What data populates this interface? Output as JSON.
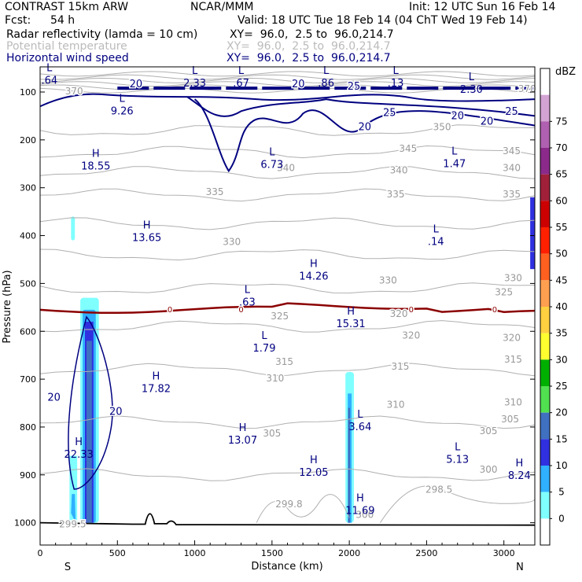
{
  "header": {
    "model": "CONTRAST 15km ARW",
    "org": "NCAR/MMM",
    "init": "Init: 12 UTC Sun 16 Feb 14",
    "fcst_label": "Fcst:",
    "fcst_value": "54 h",
    "valid": "Valid: 18 UTC Tue 18 Feb 14 (04 ChT Wed 19 Feb 14)",
    "fields": [
      {
        "name": "Radar reflectivity (lamda = 10 cm)",
        "xy": "XY=  96.0,  2.5 to  96.0,214.7",
        "color": "#000000"
      },
      {
        "name": "Potential temperature",
        "xy": "XY=  96.0,  2.5 to  96.0,214.7",
        "color": "#bbbbbb"
      },
      {
        "name": "Horizontal wind speed",
        "xy": "XY=  96.0,  2.5 to  96.0,214.7",
        "color": "#000080"
      }
    ]
  },
  "chart_data": {
    "type": "cross-section",
    "xlabel": "Distance (km)",
    "ylabel": "Pressure (hPa)",
    "xlim": [
      0,
      3200
    ],
    "ylim": [
      1050,
      40
    ],
    "x_ticks": [
      "0",
      "500",
      "1000",
      "1500",
      "2000",
      "2500",
      "3000"
    ],
    "x_tick_values": [
      0,
      500,
      1000,
      1500,
      2000,
      2500,
      3000
    ],
    "y_ticks": [
      "100",
      "200",
      "300",
      "400",
      "500",
      "600",
      "700",
      "800",
      "900",
      "1000"
    ],
    "y_tick_values": [
      100,
      200,
      300,
      400,
      500,
      600,
      700,
      800,
      900,
      1000
    ],
    "endpoints": {
      "left": "S",
      "right": "N"
    },
    "colorbar": {
      "unit": "dBZ",
      "levels": [
        {
          "label": "75",
          "color": "#d3a3d3"
        },
        {
          "label": "70",
          "color": "#b060b0"
        },
        {
          "label": "65",
          "color": "#8b2a8b"
        },
        {
          "label": "60",
          "color": "#a0203a"
        },
        {
          "label": "55",
          "color": "#cc0000"
        },
        {
          "label": "50",
          "color": "#ff2000"
        },
        {
          "label": "45",
          "color": "#ff6020"
        },
        {
          "label": "40",
          "color": "#ffa050"
        },
        {
          "label": "35",
          "color": "#ffd040"
        },
        {
          "label": "30",
          "color": "#ffff30"
        },
        {
          "label": "25",
          "color": "#00b000"
        },
        {
          "label": "20",
          "color": "#50e050"
        },
        {
          "label": "15",
          "color": "#4070c0"
        },
        {
          "label": "10",
          "color": "#3030e0"
        },
        {
          "label": "5",
          "color": "#30b0ff"
        },
        {
          "label": "0",
          "color": "#80ffff"
        }
      ]
    },
    "theta_contours": [
      {
        "label": "350",
        "p": 180
      },
      {
        "label": "345",
        "p": 225
      },
      {
        "label": "340",
        "p": 268
      },
      {
        "label": "335",
        "p": 315
      },
      {
        "label": "330",
        "p": 375
      },
      {
        "label": "325",
        "p": 440
      },
      {
        "label": "320",
        "p": 510
      },
      {
        "label": "315",
        "p": 590
      },
      {
        "label": "310",
        "p": 680
      },
      {
        "label": "305",
        "p": 790
      },
      {
        "label": "300",
        "p": 900
      }
    ],
    "theta_labels": [
      {
        "text": "350",
        "x": 2600,
        "p": 180
      },
      {
        "text": "345",
        "x": 2380,
        "p": 225
      },
      {
        "text": "345",
        "x": 3050,
        "p": 230
      },
      {
        "text": "340",
        "x": 1590,
        "p": 265
      },
      {
        "text": "340",
        "x": 2320,
        "p": 270
      },
      {
        "text": "340",
        "x": 3050,
        "p": 265
      },
      {
        "text": "335",
        "x": 1130,
        "p": 315
      },
      {
        "text": "335",
        "x": 2300,
        "p": 320
      },
      {
        "text": "335",
        "x": 3050,
        "p": 320
      },
      {
        "text": "330",
        "x": 1240,
        "p": 420
      },
      {
        "text": "330",
        "x": 2250,
        "p": 500
      },
      {
        "text": "330",
        "x": 3060,
        "p": 495
      },
      {
        "text": "325",
        "x": 1550,
        "p": 575
      },
      {
        "text": "325",
        "x": 3000,
        "p": 525
      },
      {
        "text": "320",
        "x": 2320,
        "p": 570
      },
      {
        "text": "320",
        "x": 3050,
        "p": 620
      },
      {
        "text": "320",
        "x": 2400,
        "p": 615
      },
      {
        "text": "315",
        "x": 1580,
        "p": 670
      },
      {
        "text": "315",
        "x": 2330,
        "p": 680
      },
      {
        "text": "315",
        "x": 3060,
        "p": 665
      },
      {
        "text": "310",
        "x": 1520,
        "p": 705
      },
      {
        "text": "310",
        "x": 2300,
        "p": 760
      },
      {
        "text": "310",
        "x": 3060,
        "p": 755
      },
      {
        "text": "305",
        "x": 1500,
        "p": 820
      },
      {
        "text": "305",
        "x": 2900,
        "p": 815
      },
      {
        "text": "305",
        "x": 3040,
        "p": 790
      },
      {
        "text": "300",
        "x": 2900,
        "p": 895
      },
      {
        "text": "299.8",
        "x": 1610,
        "p": 968
      },
      {
        "text": "298.5",
        "x": 2580,
        "p": 937
      },
      {
        "text": "299.5",
        "x": 210,
        "p": 1010
      },
      {
        "text": "300",
        "x": 2100,
        "p": 990
      },
      {
        "text": "370",
        "x": 3150,
        "p": 100
      },
      {
        "text": "370",
        "x": 220,
        "p": 105
      }
    ],
    "wind_labels": [
      {
        "text": "20",
        "x": 620,
        "p": 90
      },
      {
        "text": "20",
        "x": 1670,
        "p": 90
      },
      {
        "text": "25",
        "x": 2030,
        "p": 95
      },
      {
        "text": "25",
        "x": 2260,
        "p": 150
      },
      {
        "text": "20",
        "x": 2700,
        "p": 157
      },
      {
        "text": "20",
        "x": 2890,
        "p": 168
      },
      {
        "text": "25",
        "x": 3050,
        "p": 148
      },
      {
        "text": "20",
        "x": 2100,
        "p": 180
      },
      {
        "text": "20",
        "x": 90,
        "p": 745
      },
      {
        "text": "20",
        "x": 490,
        "p": 775
      }
    ],
    "zero_isotherm_label": "0",
    "extrema": [
      {
        "type": "L",
        "value": ".64",
        "x": 60,
        "p": 76
      },
      {
        "type": "L",
        "value": "2.33",
        "x": 1000,
        "p": 82
      },
      {
        "type": "L",
        "value": ".67",
        "x": 1300,
        "p": 82
      },
      {
        "type": "L",
        "value": ".86",
        "x": 1850,
        "p": 82
      },
      {
        "type": "L",
        "value": ".13",
        "x": 2300,
        "p": 82
      },
      {
        "type": "L",
        "value": "2.30",
        "x": 2790,
        "p": 95
      },
      {
        "type": "L",
        "value": "9.26",
        "x": 530,
        "p": 140
      },
      {
        "type": "H",
        "value": "18.55",
        "x": 360,
        "p": 255
      },
      {
        "type": "L",
        "value": "6.73",
        "x": 1500,
        "p": 252
      },
      {
        "type": "L",
        "value": "1.47",
        "x": 2680,
        "p": 250
      },
      {
        "type": "H",
        "value": "13.65",
        "x": 690,
        "p": 405
      },
      {
        "type": "L",
        "value": ".14",
        "x": 2560,
        "p": 413
      },
      {
        "type": "H",
        "value": "14.26",
        "x": 1770,
        "p": 485
      },
      {
        "type": "L",
        "value": ".63",
        "x": 1340,
        "p": 540
      },
      {
        "type": "H",
        "value": "15.31",
        "x": 2010,
        "p": 585
      },
      {
        "type": "L",
        "value": "1.79",
        "x": 1450,
        "p": 636
      },
      {
        "type": "H",
        "value": "17.82",
        "x": 750,
        "p": 720
      },
      {
        "type": "H",
        "value": "22.33",
        "x": 250,
        "p": 858
      },
      {
        "type": "H",
        "value": "13.07",
        "x": 1310,
        "p": 828
      },
      {
        "type": "L",
        "value": "3.64",
        "x": 2070,
        "p": 800
      },
      {
        "type": "H",
        "value": "12.05",
        "x": 1770,
        "p": 895
      },
      {
        "type": "L",
        "value": "5.13",
        "x": 2700,
        "p": 868
      },
      {
        "type": "H",
        "value": "8.24",
        "x": 3100,
        "p": 902
      },
      {
        "type": "H",
        "value": "11.69",
        "x": 2070,
        "p": 975
      }
    ]
  }
}
